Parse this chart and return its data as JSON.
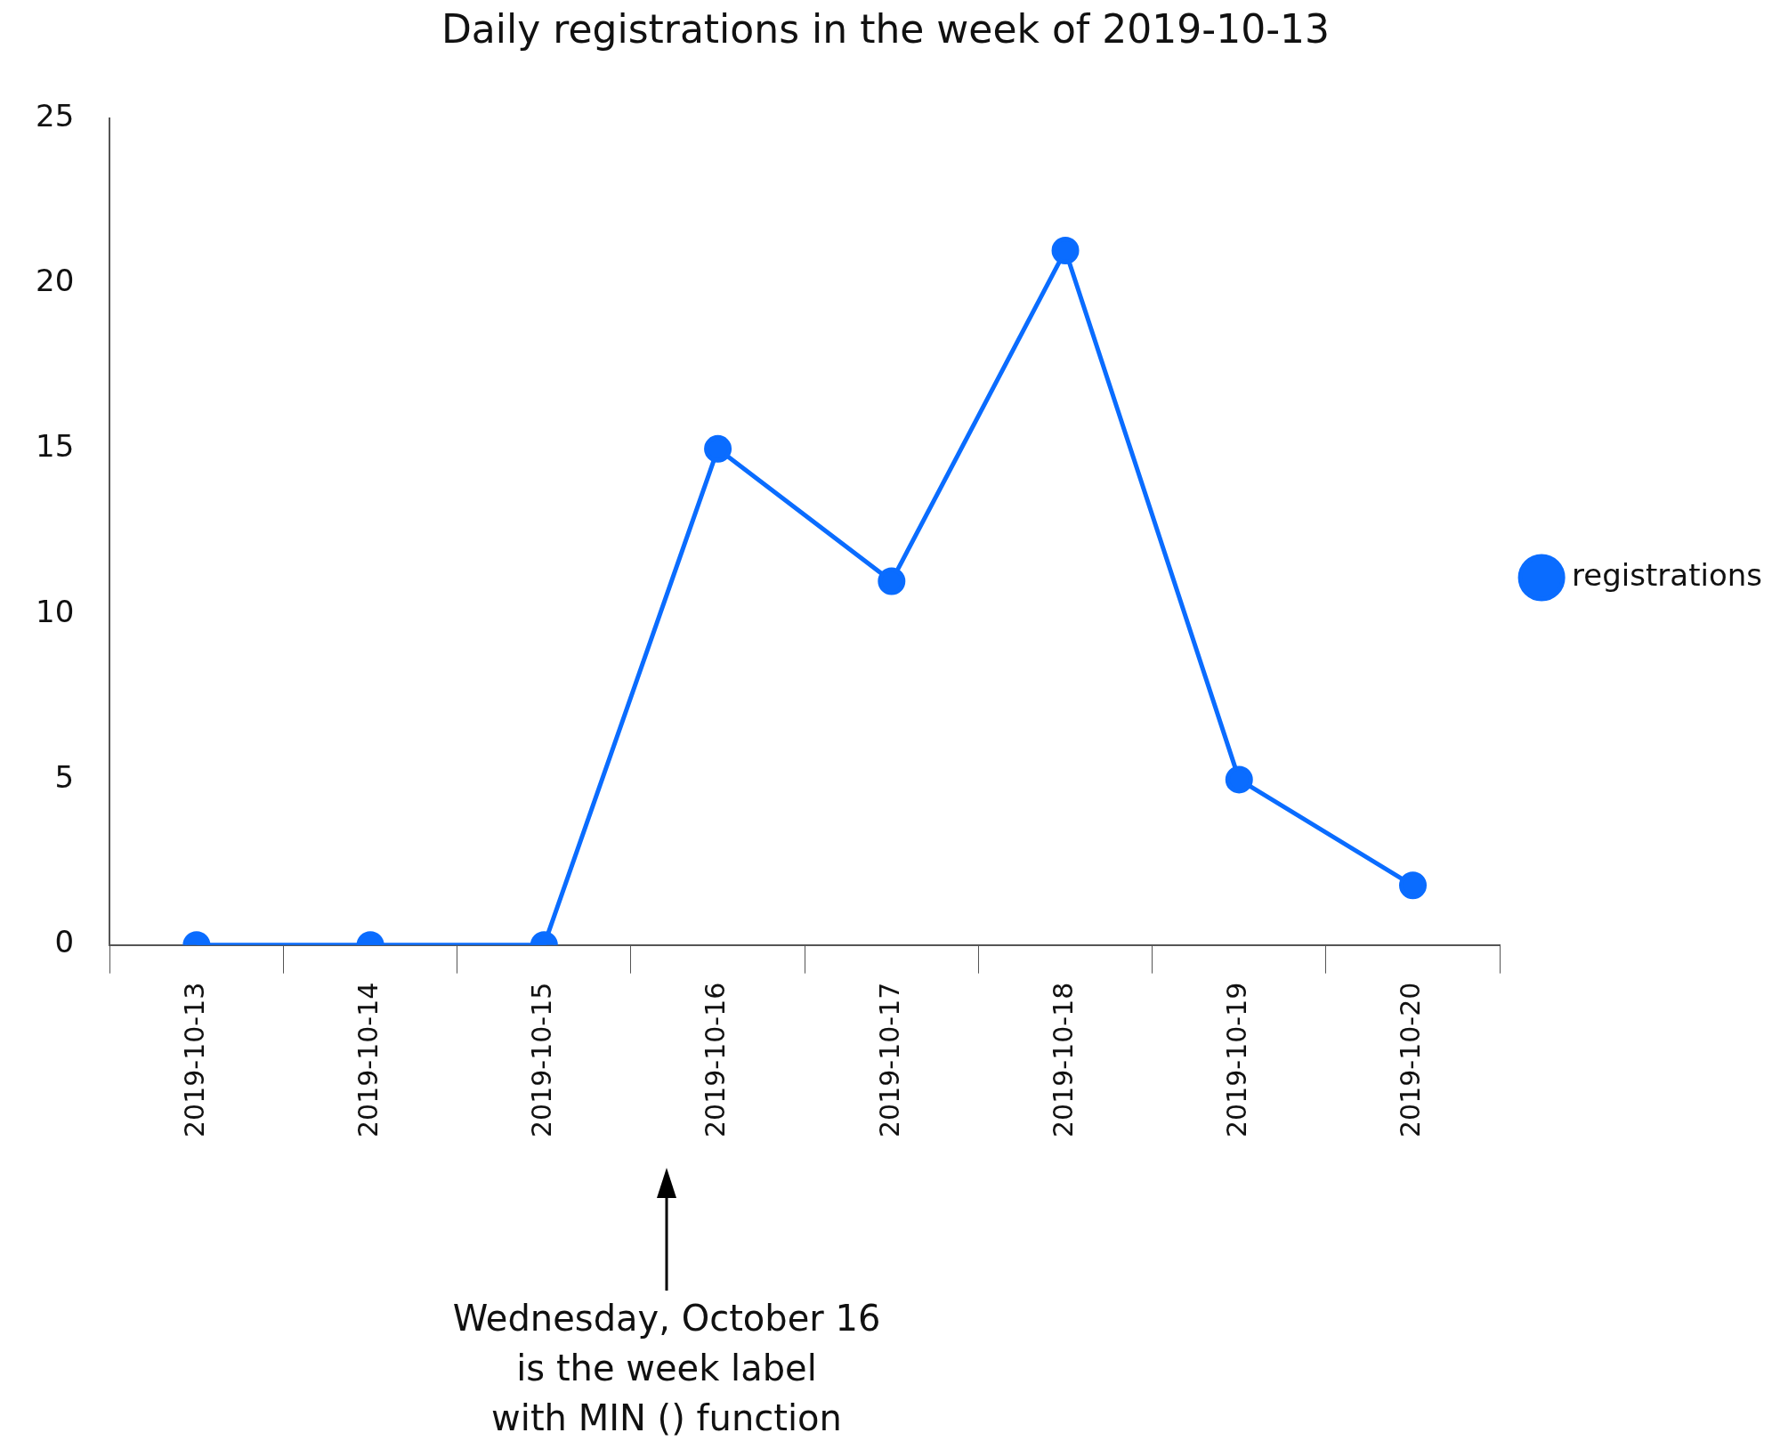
{
  "chart_data": {
    "type": "line",
    "title": "Daily registrations in the week of 2019-10-13",
    "categories": [
      "2019-10-13",
      "2019-10-14",
      "2019-10-15",
      "2019-10-16",
      "2019-10-17",
      "2019-10-18",
      "2019-10-19",
      "2019-10-20"
    ],
    "series": [
      {
        "name": "registrations",
        "color": "#0a6cff",
        "values": [
          0,
          0,
          0,
          15,
          11,
          21,
          5,
          1.8
        ]
      }
    ],
    "ylim": [
      0,
      25
    ],
    "yticks": [
      0,
      5,
      10,
      15,
      20,
      25
    ],
    "grid": false,
    "legend": "right",
    "marker": "circle",
    "line_style": "solid",
    "annotations": [
      "Wednesday, October 16\nis the week label\nwith MIN () function"
    ]
  }
}
